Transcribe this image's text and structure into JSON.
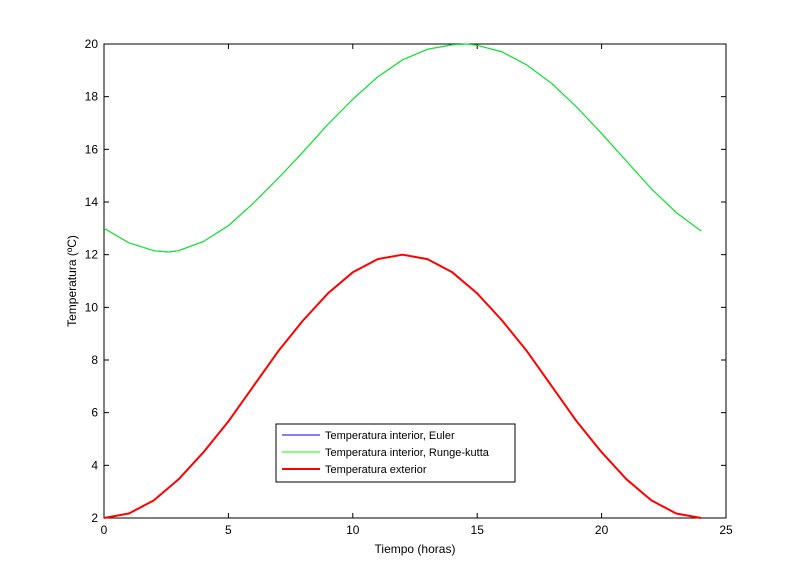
{
  "chart_data": {
    "type": "line",
    "xlabel": "Tiempo (horas)",
    "ylabel": "Temperatura (ºC)",
    "xlim": [
      0,
      25
    ],
    "ylim": [
      2,
      20
    ],
    "xticks": [
      0,
      5,
      10,
      15,
      20,
      25
    ],
    "yticks": [
      2,
      4,
      6,
      8,
      10,
      12,
      14,
      16,
      18,
      20
    ],
    "grid": false,
    "legend_position": "bottom-center",
    "series": [
      {
        "name": "Temperatura interior, Euler",
        "color": "#0000ff",
        "x": [
          0,
          1,
          2,
          2.6,
          3,
          4,
          5,
          6,
          7,
          8,
          9,
          10,
          11,
          12,
          13,
          14,
          14.6,
          15,
          16,
          17,
          18,
          19,
          20,
          21,
          22,
          23,
          24
        ],
        "y": [
          13.0,
          12.45,
          12.15,
          12.1,
          12.15,
          12.5,
          13.1,
          13.95,
          14.9,
          15.9,
          16.95,
          17.9,
          18.75,
          19.4,
          19.8,
          19.97,
          20.0,
          19.95,
          19.7,
          19.2,
          18.5,
          17.6,
          16.6,
          15.55,
          14.5,
          13.6,
          12.9
        ]
      },
      {
        "name": "Temperatura interior, Runge-kutta",
        "color": "#00ff00",
        "x": [
          0,
          1,
          2,
          2.6,
          3,
          4,
          5,
          6,
          7,
          8,
          9,
          10,
          11,
          12,
          13,
          14,
          14.6,
          15,
          16,
          17,
          18,
          19,
          20,
          21,
          22,
          23,
          24
        ],
        "y": [
          13.0,
          12.45,
          12.15,
          12.1,
          12.15,
          12.5,
          13.1,
          13.95,
          14.9,
          15.9,
          16.95,
          17.9,
          18.75,
          19.4,
          19.8,
          19.97,
          20.0,
          19.95,
          19.7,
          19.2,
          18.5,
          17.6,
          16.6,
          15.55,
          14.5,
          13.6,
          12.9
        ]
      },
      {
        "name": "Temperatura exterior",
        "color": "#ff0000",
        "x": [
          0,
          1,
          2,
          3,
          4,
          5,
          6,
          7,
          8,
          9,
          10,
          11,
          12,
          13,
          14,
          15,
          16,
          17,
          18,
          19,
          20,
          21,
          22,
          23,
          24
        ],
        "y": [
          2.0,
          2.17,
          2.67,
          3.47,
          4.5,
          5.67,
          7.0,
          8.33,
          9.5,
          10.53,
          11.33,
          11.83,
          12.0,
          11.83,
          11.33,
          10.53,
          9.5,
          8.33,
          7.0,
          5.67,
          4.5,
          3.47,
          2.67,
          2.17,
          2.0
        ]
      }
    ]
  }
}
